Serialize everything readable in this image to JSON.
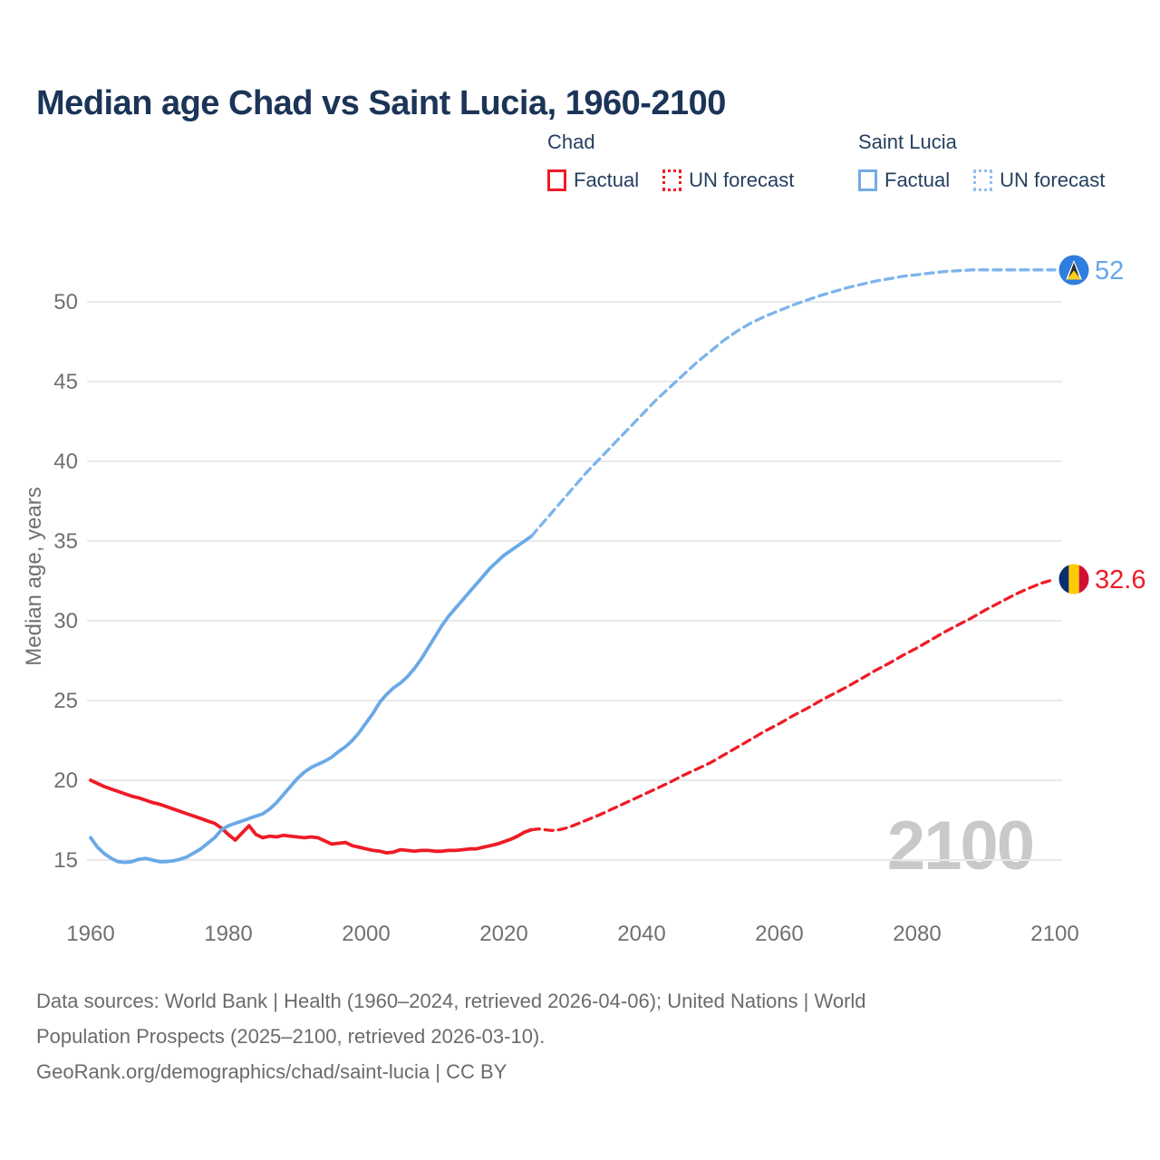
{
  "title": "Median age Chad vs Saint Lucia, 1960-2100",
  "watermark": "2100",
  "legend": {
    "chad": {
      "header": "Chad",
      "factual": "Factual",
      "forecast": "UN forecast"
    },
    "saint_lucia": {
      "header": "Saint Lucia",
      "factual": "Factual",
      "forecast": "UN forecast"
    }
  },
  "endpoints": {
    "saint_lucia": {
      "label": "52",
      "year": 2100,
      "value": 52,
      "flag": "saint-lucia-flag",
      "label_color": "#64a7e8"
    },
    "chad": {
      "label": "32.6",
      "year": 2100,
      "value": 32.6,
      "flag": "chad-flag",
      "label_color": "#ee1c25"
    }
  },
  "footer": {
    "line1": "Data sources: World Bank | Health (1960–2024, retrieved 2026-04-06); United Nations | World",
    "line2": "Population Prospects (2025–2100, retrieved 2026-03-10).",
    "line3": "GeoRank.org/demographics/chad/saint-lucia | CC BY"
  },
  "colors": {
    "chad_line": "#ee1c25",
    "chad_forecast_line": "#ee1c25",
    "saint_lucia_line": "#6aa9e6",
    "saint_lucia_forecast_line": "#7db4ec",
    "title_text": "#1b3458",
    "legend_text": "#24405f",
    "axis_text": "#6e7072",
    "gridline": "#e9e9e9",
    "watermark_text": "#c9c9c9",
    "footer_text": "#696b6e"
  },
  "chart_data": {
    "type": "line",
    "title": "Median age Chad vs Saint Lucia, 1960-2100",
    "xlabel": "",
    "ylabel": "Median age, years",
    "xlim": [
      1960,
      2100
    ],
    "ylim": [
      13.5,
      53.5
    ],
    "grid": "horizontal",
    "legend_position": "top-right",
    "x_ticks": [
      1960,
      1980,
      2000,
      2020,
      2040,
      2060,
      2080,
      2100
    ],
    "y_ticks": [
      15,
      20,
      25,
      30,
      35,
      40,
      45,
      50
    ],
    "series": [
      {
        "name": "Chad Factual",
        "style": "solid",
        "color": "#ee1c25",
        "points": [
          [
            1960,
            20.0
          ],
          [
            1961,
            19.8
          ],
          [
            1962,
            19.6
          ],
          [
            1963,
            19.45
          ],
          [
            1964,
            19.3
          ],
          [
            1965,
            19.15
          ],
          [
            1966,
            19.0
          ],
          [
            1967,
            18.9
          ],
          [
            1968,
            18.75
          ],
          [
            1969,
            18.6
          ],
          [
            1970,
            18.5
          ],
          [
            1971,
            18.35
          ],
          [
            1972,
            18.2
          ],
          [
            1973,
            18.05
          ],
          [
            1974,
            17.9
          ],
          [
            1975,
            17.75
          ],
          [
            1976,
            17.6
          ],
          [
            1977,
            17.45
          ],
          [
            1978,
            17.3
          ],
          [
            1979,
            17.0
          ],
          [
            1980,
            16.6
          ],
          [
            1981,
            16.25
          ],
          [
            1982,
            16.7
          ],
          [
            1983,
            17.15
          ],
          [
            1984,
            16.6
          ],
          [
            1985,
            16.4
          ],
          [
            1986,
            16.5
          ],
          [
            1987,
            16.45
          ],
          [
            1988,
            16.55
          ],
          [
            1989,
            16.5
          ],
          [
            1990,
            16.45
          ],
          [
            1991,
            16.4
          ],
          [
            1992,
            16.45
          ],
          [
            1993,
            16.4
          ],
          [
            1994,
            16.2
          ],
          [
            1995,
            16.0
          ],
          [
            1996,
            16.05
          ],
          [
            1997,
            16.1
          ],
          [
            1998,
            15.9
          ],
          [
            1999,
            15.8
          ],
          [
            2000,
            15.7
          ],
          [
            2001,
            15.6
          ],
          [
            2002,
            15.55
          ],
          [
            2003,
            15.45
          ],
          [
            2004,
            15.5
          ],
          [
            2005,
            15.65
          ],
          [
            2006,
            15.6
          ],
          [
            2007,
            15.55
          ],
          [
            2008,
            15.6
          ],
          [
            2009,
            15.6
          ],
          [
            2010,
            15.55
          ],
          [
            2011,
            15.55
          ],
          [
            2012,
            15.6
          ],
          [
            2013,
            15.6
          ],
          [
            2014,
            15.65
          ],
          [
            2015,
            15.7
          ],
          [
            2016,
            15.7
          ],
          [
            2017,
            15.8
          ],
          [
            2018,
            15.9
          ],
          [
            2019,
            16.0
          ],
          [
            2020,
            16.15
          ],
          [
            2021,
            16.3
          ],
          [
            2022,
            16.5
          ],
          [
            2023,
            16.75
          ],
          [
            2024,
            16.9
          ]
        ]
      },
      {
        "name": "Chad UN forecast",
        "style": "dashed",
        "color": "#ee1c25",
        "points": [
          [
            2024,
            16.9
          ],
          [
            2025,
            16.95
          ],
          [
            2026,
            16.9
          ],
          [
            2027,
            16.85
          ],
          [
            2028,
            16.9
          ],
          [
            2029,
            17.0
          ],
          [
            2030,
            17.15
          ],
          [
            2032,
            17.5
          ],
          [
            2034,
            17.85
          ],
          [
            2036,
            18.25
          ],
          [
            2038,
            18.65
          ],
          [
            2040,
            19.05
          ],
          [
            2042,
            19.45
          ],
          [
            2044,
            19.85
          ],
          [
            2046,
            20.3
          ],
          [
            2048,
            20.7
          ],
          [
            2050,
            21.1
          ],
          [
            2052,
            21.6
          ],
          [
            2054,
            22.1
          ],
          [
            2056,
            22.6
          ],
          [
            2058,
            23.1
          ],
          [
            2060,
            23.55
          ],
          [
            2062,
            24.05
          ],
          [
            2064,
            24.5
          ],
          [
            2066,
            25.0
          ],
          [
            2068,
            25.45
          ],
          [
            2070,
            25.9
          ],
          [
            2072,
            26.4
          ],
          [
            2074,
            26.9
          ],
          [
            2076,
            27.35
          ],
          [
            2078,
            27.85
          ],
          [
            2080,
            28.3
          ],
          [
            2082,
            28.8
          ],
          [
            2084,
            29.3
          ],
          [
            2086,
            29.75
          ],
          [
            2088,
            30.2
          ],
          [
            2090,
            30.7
          ],
          [
            2092,
            31.15
          ],
          [
            2094,
            31.6
          ],
          [
            2096,
            32.0
          ],
          [
            2098,
            32.35
          ],
          [
            2100,
            32.6
          ]
        ]
      },
      {
        "name": "Saint Lucia Factual",
        "style": "solid",
        "color": "#6aa9e6",
        "points": [
          [
            1960,
            16.4
          ],
          [
            1961,
            15.8
          ],
          [
            1962,
            15.4
          ],
          [
            1963,
            15.1
          ],
          [
            1964,
            14.9
          ],
          [
            1965,
            14.85
          ],
          [
            1966,
            14.9
          ],
          [
            1967,
            15.05
          ],
          [
            1968,
            15.1
          ],
          [
            1969,
            15.0
          ],
          [
            1970,
            14.9
          ],
          [
            1971,
            14.9
          ],
          [
            1972,
            14.95
          ],
          [
            1973,
            15.05
          ],
          [
            1974,
            15.2
          ],
          [
            1975,
            15.45
          ],
          [
            1976,
            15.7
          ],
          [
            1977,
            16.05
          ],
          [
            1978,
            16.4
          ],
          [
            1979,
            16.9
          ],
          [
            1980,
            17.15
          ],
          [
            1981,
            17.3
          ],
          [
            1982,
            17.45
          ],
          [
            1983,
            17.6
          ],
          [
            1984,
            17.75
          ],
          [
            1985,
            17.9
          ],
          [
            1986,
            18.2
          ],
          [
            1987,
            18.6
          ],
          [
            1988,
            19.1
          ],
          [
            1989,
            19.6
          ],
          [
            1990,
            20.1
          ],
          [
            1991,
            20.5
          ],
          [
            1992,
            20.8
          ],
          [
            1993,
            21.0
          ],
          [
            1994,
            21.2
          ],
          [
            1995,
            21.45
          ],
          [
            1996,
            21.8
          ],
          [
            1997,
            22.1
          ],
          [
            1998,
            22.5
          ],
          [
            1999,
            23.0
          ],
          [
            2000,
            23.6
          ],
          [
            2001,
            24.2
          ],
          [
            2002,
            24.9
          ],
          [
            2003,
            25.4
          ],
          [
            2004,
            25.8
          ],
          [
            2005,
            26.1
          ],
          [
            2006,
            26.5
          ],
          [
            2007,
            27.0
          ],
          [
            2008,
            27.6
          ],
          [
            2009,
            28.3
          ],
          [
            2010,
            29.0
          ],
          [
            2011,
            29.7
          ],
          [
            2012,
            30.3
          ],
          [
            2013,
            30.8
          ],
          [
            2014,
            31.3
          ],
          [
            2015,
            31.8
          ],
          [
            2016,
            32.3
          ],
          [
            2017,
            32.8
          ],
          [
            2018,
            33.3
          ],
          [
            2019,
            33.7
          ],
          [
            2020,
            34.1
          ],
          [
            2021,
            34.4
          ],
          [
            2022,
            34.7
          ],
          [
            2023,
            35.0
          ],
          [
            2024,
            35.3
          ]
        ]
      },
      {
        "name": "Saint Lucia UN forecast",
        "style": "dashed",
        "color": "#7db4ec",
        "points": [
          [
            2024,
            35.3
          ],
          [
            2025,
            35.8
          ],
          [
            2026,
            36.3
          ],
          [
            2028,
            37.3
          ],
          [
            2030,
            38.3
          ],
          [
            2032,
            39.3
          ],
          [
            2034,
            40.2
          ],
          [
            2036,
            41.1
          ],
          [
            2038,
            42.0
          ],
          [
            2040,
            42.9
          ],
          [
            2042,
            43.8
          ],
          [
            2044,
            44.6
          ],
          [
            2046,
            45.4
          ],
          [
            2048,
            46.2
          ],
          [
            2050,
            46.9
          ],
          [
            2052,
            47.6
          ],
          [
            2054,
            48.2
          ],
          [
            2056,
            48.7
          ],
          [
            2058,
            49.1
          ],
          [
            2060,
            49.45
          ],
          [
            2062,
            49.8
          ],
          [
            2064,
            50.1
          ],
          [
            2066,
            50.4
          ],
          [
            2068,
            50.65
          ],
          [
            2070,
            50.9
          ],
          [
            2072,
            51.1
          ],
          [
            2074,
            51.3
          ],
          [
            2076,
            51.45
          ],
          [
            2078,
            51.6
          ],
          [
            2080,
            51.7
          ],
          [
            2082,
            51.8
          ],
          [
            2084,
            51.9
          ],
          [
            2086,
            51.95
          ],
          [
            2088,
            52.0
          ],
          [
            2090,
            52.0
          ],
          [
            2092,
            52.0
          ],
          [
            2094,
            52.0
          ],
          [
            2096,
            52.0
          ],
          [
            2098,
            52.0
          ],
          [
            2100,
            52.0
          ]
        ]
      }
    ]
  }
}
